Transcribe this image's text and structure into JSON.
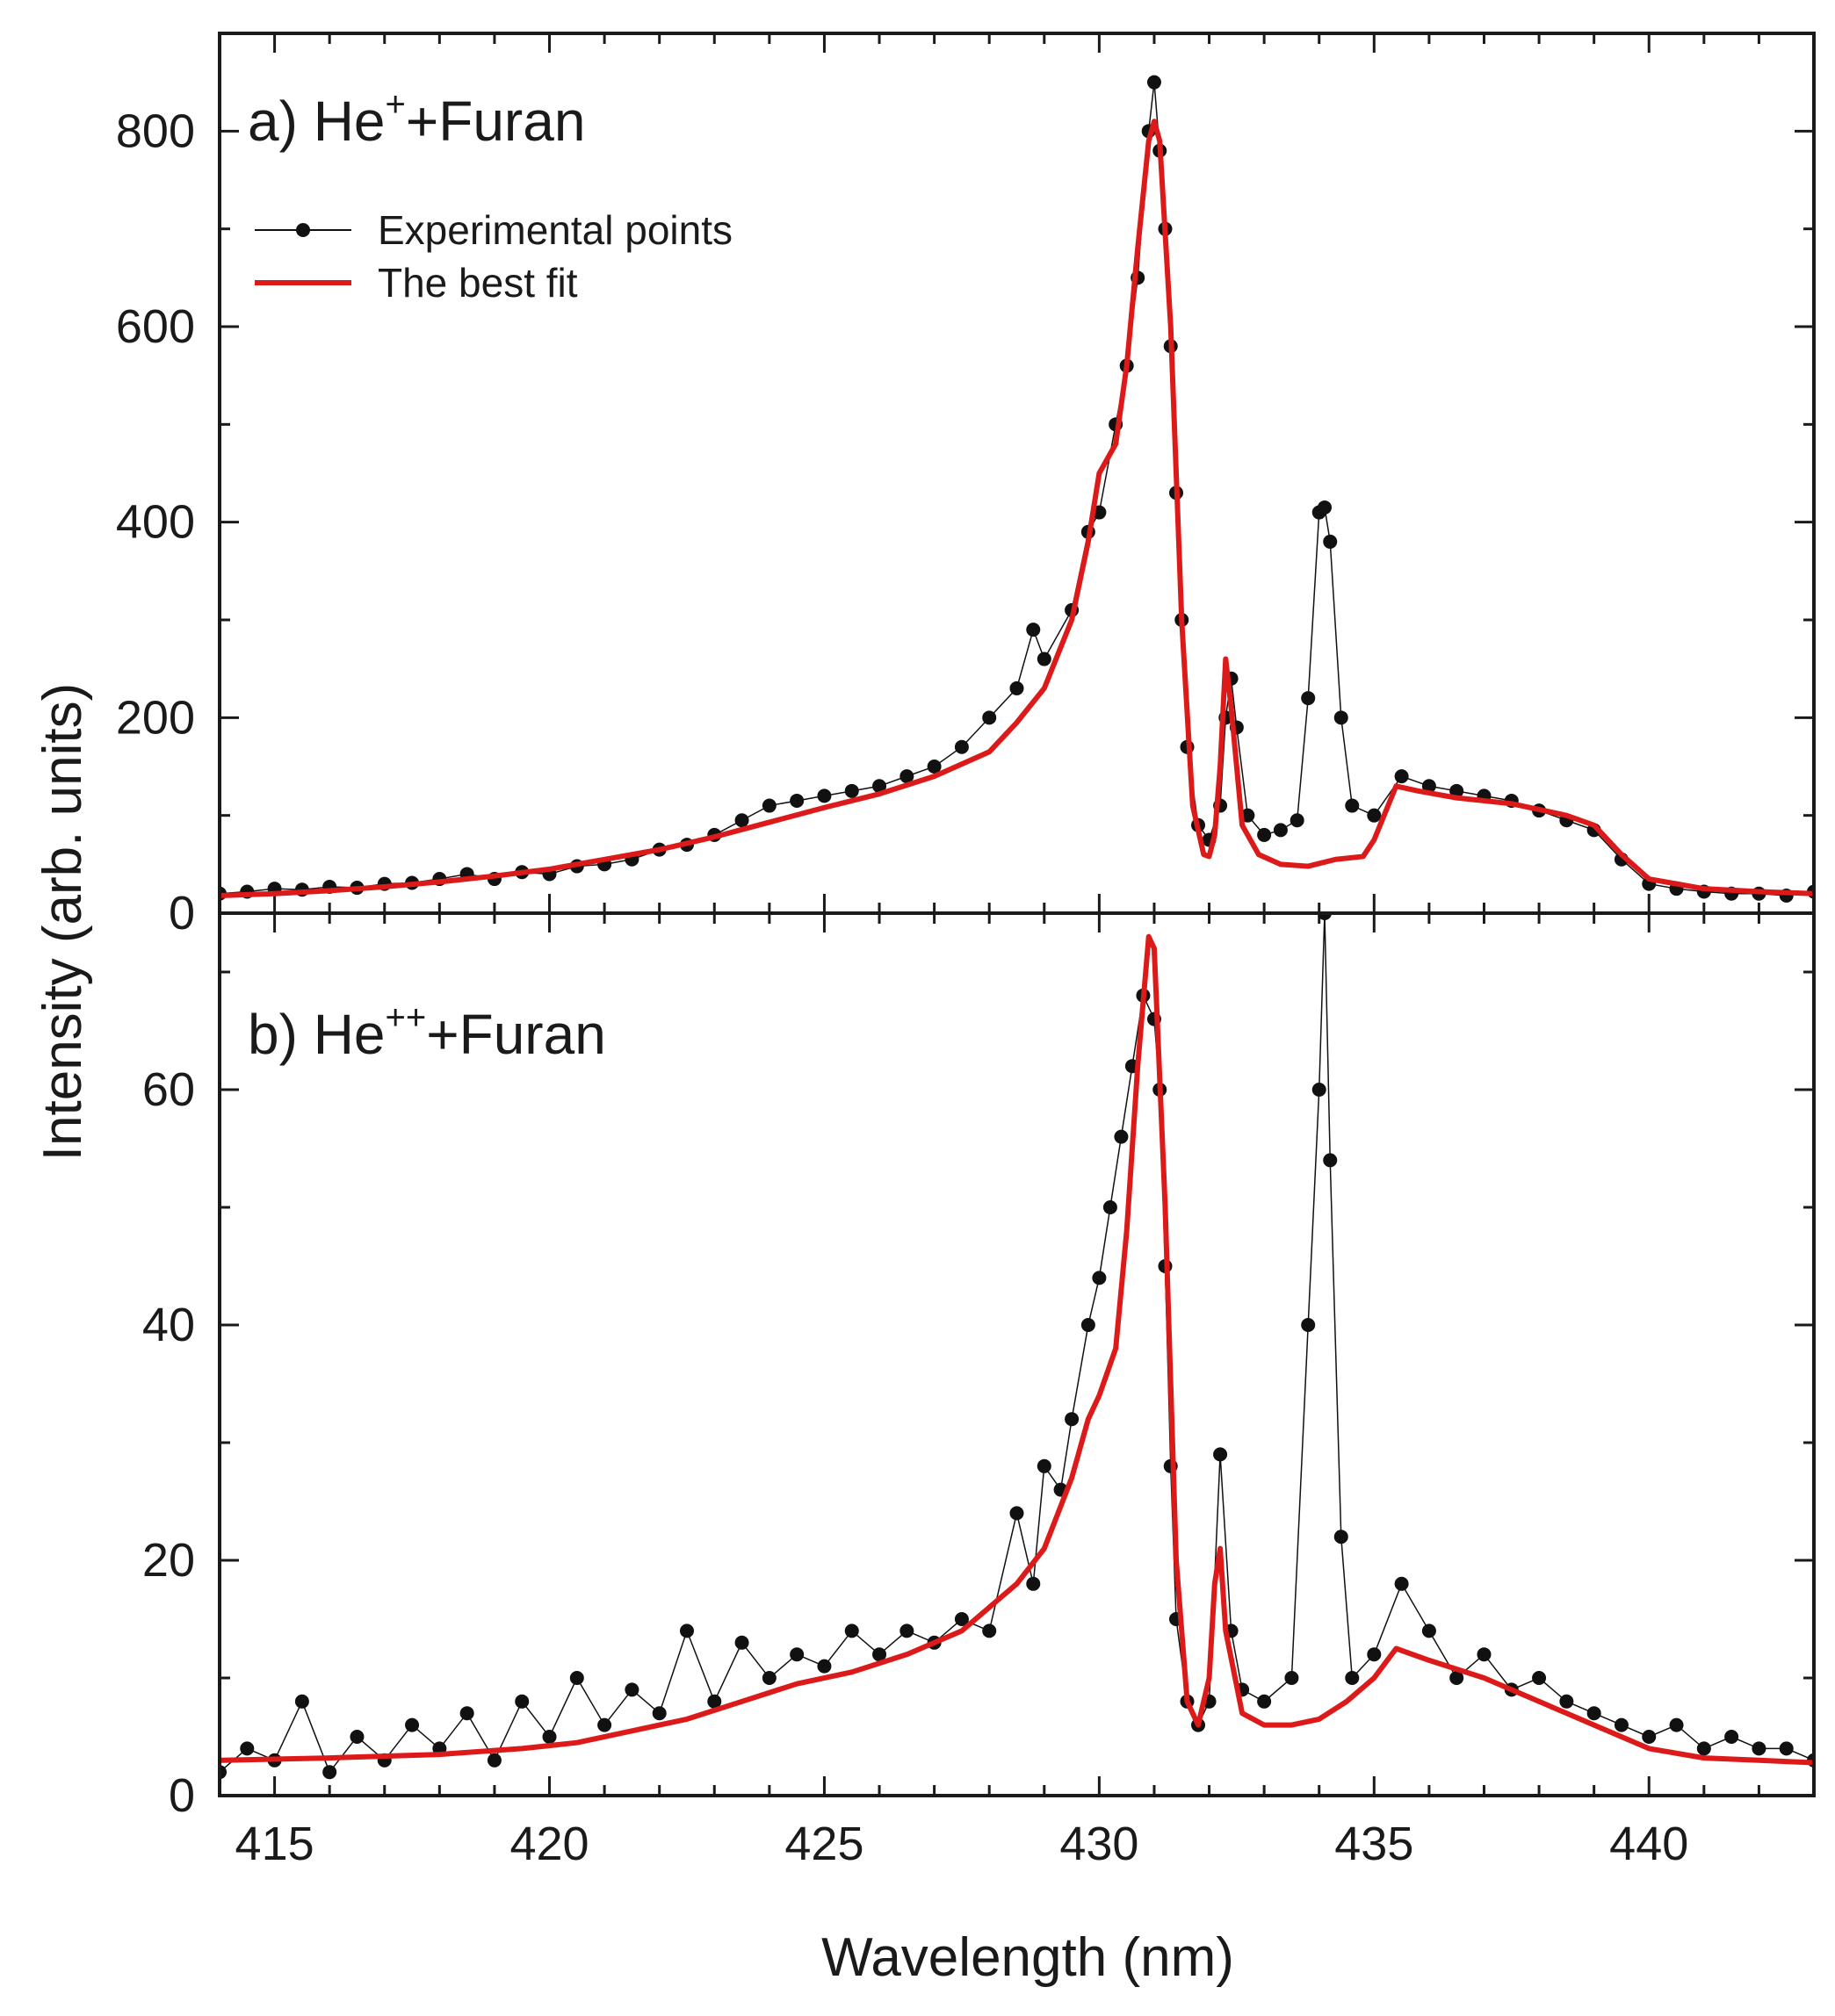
{
  "chart_data": {
    "type": "line",
    "xlabel": "Wavelength (nm)",
    "ylabel": "Intensity (arb. units)",
    "x_range": [
      414,
      443
    ],
    "x_ticks": [
      415,
      420,
      425,
      430,
      435,
      440
    ],
    "x_tick_labels": [
      "415",
      "420",
      "425",
      "430",
      "435",
      "440"
    ],
    "legend": {
      "placement": "top-left",
      "entries": [
        "Experimental points",
        "The best fit"
      ]
    },
    "colors": {
      "experimental": "#111111",
      "fit": "#dd1a1a",
      "axes": "#1a1a1a"
    },
    "panels": [
      {
        "id": "a",
        "title_prefix": "a) He",
        "title_sup": "+",
        "title_suffix": "+Furan",
        "ylim": [
          0,
          900
        ],
        "y_ticks": [
          0,
          200,
          400,
          600,
          800
        ],
        "y_tick_labels": [
          "0",
          "200",
          "400",
          "600",
          "800"
        ],
        "experimental": [
          [
            414.0,
            20
          ],
          [
            414.5,
            22
          ],
          [
            415.0,
            25
          ],
          [
            415.5,
            24
          ],
          [
            416.0,
            27
          ],
          [
            416.5,
            26
          ],
          [
            417.0,
            30
          ],
          [
            417.5,
            31
          ],
          [
            418.0,
            35
          ],
          [
            418.5,
            40
          ],
          [
            419.0,
            35
          ],
          [
            419.5,
            42
          ],
          [
            420.0,
            40
          ],
          [
            420.5,
            48
          ],
          [
            421.0,
            50
          ],
          [
            421.5,
            55
          ],
          [
            422.0,
            65
          ],
          [
            422.5,
            70
          ],
          [
            423.0,
            80
          ],
          [
            423.5,
            95
          ],
          [
            424.0,
            110
          ],
          [
            424.5,
            115
          ],
          [
            425.0,
            120
          ],
          [
            425.5,
            125
          ],
          [
            426.0,
            130
          ],
          [
            426.5,
            140
          ],
          [
            427.0,
            150
          ],
          [
            427.5,
            170
          ],
          [
            428.0,
            200
          ],
          [
            428.5,
            230
          ],
          [
            428.8,
            290
          ],
          [
            429.0,
            260
          ],
          [
            429.5,
            310
          ],
          [
            429.8,
            390
          ],
          [
            430.0,
            410
          ],
          [
            430.3,
            500
          ],
          [
            430.5,
            560
          ],
          [
            430.7,
            650
          ],
          [
            430.9,
            800
          ],
          [
            431.0,
            850
          ],
          [
            431.1,
            780
          ],
          [
            431.2,
            700
          ],
          [
            431.3,
            580
          ],
          [
            431.4,
            430
          ],
          [
            431.5,
            300
          ],
          [
            431.6,
            170
          ],
          [
            431.8,
            90
          ],
          [
            432.0,
            75
          ],
          [
            432.2,
            110
          ],
          [
            432.3,
            200
          ],
          [
            432.4,
            240
          ],
          [
            432.5,
            190
          ],
          [
            432.7,
            100
          ],
          [
            433.0,
            80
          ],
          [
            433.3,
            85
          ],
          [
            433.6,
            95
          ],
          [
            433.8,
            220
          ],
          [
            434.0,
            410
          ],
          [
            434.1,
            415
          ],
          [
            434.2,
            380
          ],
          [
            434.4,
            200
          ],
          [
            434.6,
            110
          ],
          [
            435.0,
            100
          ],
          [
            435.5,
            140
          ],
          [
            436.0,
            130
          ],
          [
            436.5,
            125
          ],
          [
            437.0,
            120
          ],
          [
            437.5,
            115
          ],
          [
            438.0,
            105
          ],
          [
            438.5,
            95
          ],
          [
            439.0,
            85
          ],
          [
            439.5,
            55
          ],
          [
            440.0,
            30
          ],
          [
            440.5,
            25
          ],
          [
            441.0,
            22
          ],
          [
            441.5,
            20
          ],
          [
            442.0,
            20
          ],
          [
            442.5,
            18
          ],
          [
            443.0,
            22
          ]
        ],
        "fit": [
          [
            414.0,
            18
          ],
          [
            415.0,
            20
          ],
          [
            416.0,
            23
          ],
          [
            417.0,
            27
          ],
          [
            418.0,
            32
          ],
          [
            419.0,
            38
          ],
          [
            420.0,
            45
          ],
          [
            421.0,
            55
          ],
          [
            422.0,
            65
          ],
          [
            423.0,
            78
          ],
          [
            424.0,
            93
          ],
          [
            425.0,
            108
          ],
          [
            426.0,
            122
          ],
          [
            427.0,
            140
          ],
          [
            428.0,
            165
          ],
          [
            428.5,
            195
          ],
          [
            429.0,
            230
          ],
          [
            429.5,
            300
          ],
          [
            429.8,
            380
          ],
          [
            430.0,
            450
          ],
          [
            430.3,
            480
          ],
          [
            430.5,
            560
          ],
          [
            430.7,
            680
          ],
          [
            430.9,
            790
          ],
          [
            431.0,
            810
          ],
          [
            431.1,
            790
          ],
          [
            431.3,
            600
          ],
          [
            431.5,
            300
          ],
          [
            431.7,
            110
          ],
          [
            431.9,
            60
          ],
          [
            432.0,
            58
          ],
          [
            432.1,
            80
          ],
          [
            432.2,
            150
          ],
          [
            432.3,
            260
          ],
          [
            432.4,
            210
          ],
          [
            432.6,
            90
          ],
          [
            432.9,
            60
          ],
          [
            433.3,
            50
          ],
          [
            433.8,
            48
          ],
          [
            434.3,
            55
          ],
          [
            434.8,
            58
          ],
          [
            435.0,
            75
          ],
          [
            435.4,
            130
          ],
          [
            435.8,
            125
          ],
          [
            436.5,
            118
          ],
          [
            437.5,
            112
          ],
          [
            438.5,
            100
          ],
          [
            439.0,
            90
          ],
          [
            439.5,
            60
          ],
          [
            440.0,
            35
          ],
          [
            441.0,
            25
          ],
          [
            442.0,
            22
          ],
          [
            443.0,
            20
          ]
        ]
      },
      {
        "id": "b",
        "title_prefix": "b) He",
        "title_sup": "++",
        "title_suffix": "+Furan",
        "ylim": [
          0,
          75
        ],
        "y_ticks": [
          0,
          20,
          40,
          60
        ],
        "y_tick_labels": [
          "0",
          "20",
          "40",
          "60"
        ],
        "experimental": [
          [
            414.0,
            2
          ],
          [
            414.5,
            4
          ],
          [
            415.0,
            3
          ],
          [
            415.5,
            8
          ],
          [
            416.0,
            2
          ],
          [
            416.5,
            5
          ],
          [
            417.0,
            3
          ],
          [
            417.5,
            6
          ],
          [
            418.0,
            4
          ],
          [
            418.5,
            7
          ],
          [
            419.0,
            3
          ],
          [
            419.5,
            8
          ],
          [
            420.0,
            5
          ],
          [
            420.5,
            10
          ],
          [
            421.0,
            6
          ],
          [
            421.5,
            9
          ],
          [
            422.0,
            7
          ],
          [
            422.5,
            14
          ],
          [
            423.0,
            8
          ],
          [
            423.5,
            13
          ],
          [
            424.0,
            10
          ],
          [
            424.5,
            12
          ],
          [
            425.0,
            11
          ],
          [
            425.5,
            14
          ],
          [
            426.0,
            12
          ],
          [
            426.5,
            14
          ],
          [
            427.0,
            13
          ],
          [
            427.5,
            15
          ],
          [
            428.0,
            14
          ],
          [
            428.5,
            24
          ],
          [
            428.8,
            18
          ],
          [
            429.0,
            28
          ],
          [
            429.3,
            26
          ],
          [
            429.5,
            32
          ],
          [
            429.8,
            40
          ],
          [
            430.0,
            44
          ],
          [
            430.2,
            50
          ],
          [
            430.4,
            56
          ],
          [
            430.6,
            62
          ],
          [
            430.8,
            68
          ],
          [
            431.0,
            66
          ],
          [
            431.1,
            60
          ],
          [
            431.2,
            45
          ],
          [
            431.3,
            28
          ],
          [
            431.4,
            15
          ],
          [
            431.6,
            8
          ],
          [
            431.8,
            6
          ],
          [
            432.0,
            8
          ],
          [
            432.2,
            29
          ],
          [
            432.4,
            14
          ],
          [
            432.6,
            9
          ],
          [
            433.0,
            8
          ],
          [
            433.5,
            10
          ],
          [
            433.8,
            40
          ],
          [
            434.0,
            60
          ],
          [
            434.1,
            75
          ],
          [
            434.2,
            54
          ],
          [
            434.4,
            22
          ],
          [
            434.6,
            10
          ],
          [
            435.0,
            12
          ],
          [
            435.5,
            18
          ],
          [
            436.0,
            14
          ],
          [
            436.5,
            10
          ],
          [
            437.0,
            12
          ],
          [
            437.5,
            9
          ],
          [
            438.0,
            10
          ],
          [
            438.5,
            8
          ],
          [
            439.0,
            7
          ],
          [
            439.5,
            6
          ],
          [
            440.0,
            5
          ],
          [
            440.5,
            6
          ],
          [
            441.0,
            4
          ],
          [
            441.5,
            5
          ],
          [
            442.0,
            4
          ],
          [
            442.5,
            4
          ],
          [
            443.0,
            3
          ]
        ],
        "fit": [
          [
            414.0,
            3
          ],
          [
            416.0,
            3.2
          ],
          [
            418.0,
            3.5
          ],
          [
            419.5,
            4
          ],
          [
            420.5,
            4.5
          ],
          [
            421.5,
            5.5
          ],
          [
            422.5,
            6.5
          ],
          [
            423.5,
            8
          ],
          [
            424.5,
            9.5
          ],
          [
            425.5,
            10.5
          ],
          [
            426.5,
            12
          ],
          [
            427.5,
            14
          ],
          [
            428.0,
            16
          ],
          [
            428.5,
            18
          ],
          [
            429.0,
            21
          ],
          [
            429.5,
            27
          ],
          [
            429.8,
            32
          ],
          [
            430.0,
            34
          ],
          [
            430.3,
            38
          ],
          [
            430.5,
            48
          ],
          [
            430.7,
            62
          ],
          [
            430.9,
            73
          ],
          [
            431.0,
            72
          ],
          [
            431.2,
            50
          ],
          [
            431.4,
            20
          ],
          [
            431.6,
            8
          ],
          [
            431.8,
            6
          ],
          [
            432.0,
            10
          ],
          [
            432.1,
            18
          ],
          [
            432.2,
            21
          ],
          [
            432.3,
            14
          ],
          [
            432.6,
            7
          ],
          [
            433.0,
            6
          ],
          [
            433.5,
            6
          ],
          [
            434.0,
            6.5
          ],
          [
            434.5,
            8
          ],
          [
            435.0,
            10
          ],
          [
            435.4,
            12.5
          ],
          [
            436.0,
            11.5
          ],
          [
            437.0,
            10
          ],
          [
            438.0,
            8
          ],
          [
            439.0,
            6
          ],
          [
            440.0,
            4
          ],
          [
            441.0,
            3.2
          ],
          [
            442.0,
            3
          ],
          [
            443.0,
            2.8
          ]
        ]
      }
    ]
  }
}
